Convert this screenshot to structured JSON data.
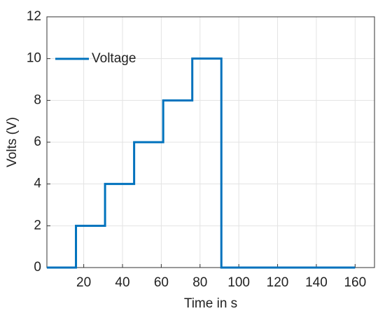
{
  "chart_data": {
    "type": "line",
    "xlabel": "Time in s",
    "ylabel": "Volts (V)",
    "x": [
      1,
      16,
      16,
      31,
      31,
      46,
      46,
      61,
      61,
      76,
      76,
      91,
      91,
      160
    ],
    "series": [
      {
        "name": "Voltage",
        "color": "#0072bd",
        "values": [
          0,
          0,
          2,
          2,
          4,
          4,
          6,
          6,
          8,
          8,
          10,
          10,
          0,
          0
        ]
      }
    ],
    "xlim": [
      1,
      170
    ],
    "xticks": [
      20,
      40,
      60,
      80,
      100,
      120,
      140,
      160
    ],
    "ylim": [
      0,
      12
    ],
    "yticks": [
      0,
      2,
      4,
      6,
      8,
      10,
      12
    ],
    "grid": true,
    "legend": "upper-left"
  }
}
